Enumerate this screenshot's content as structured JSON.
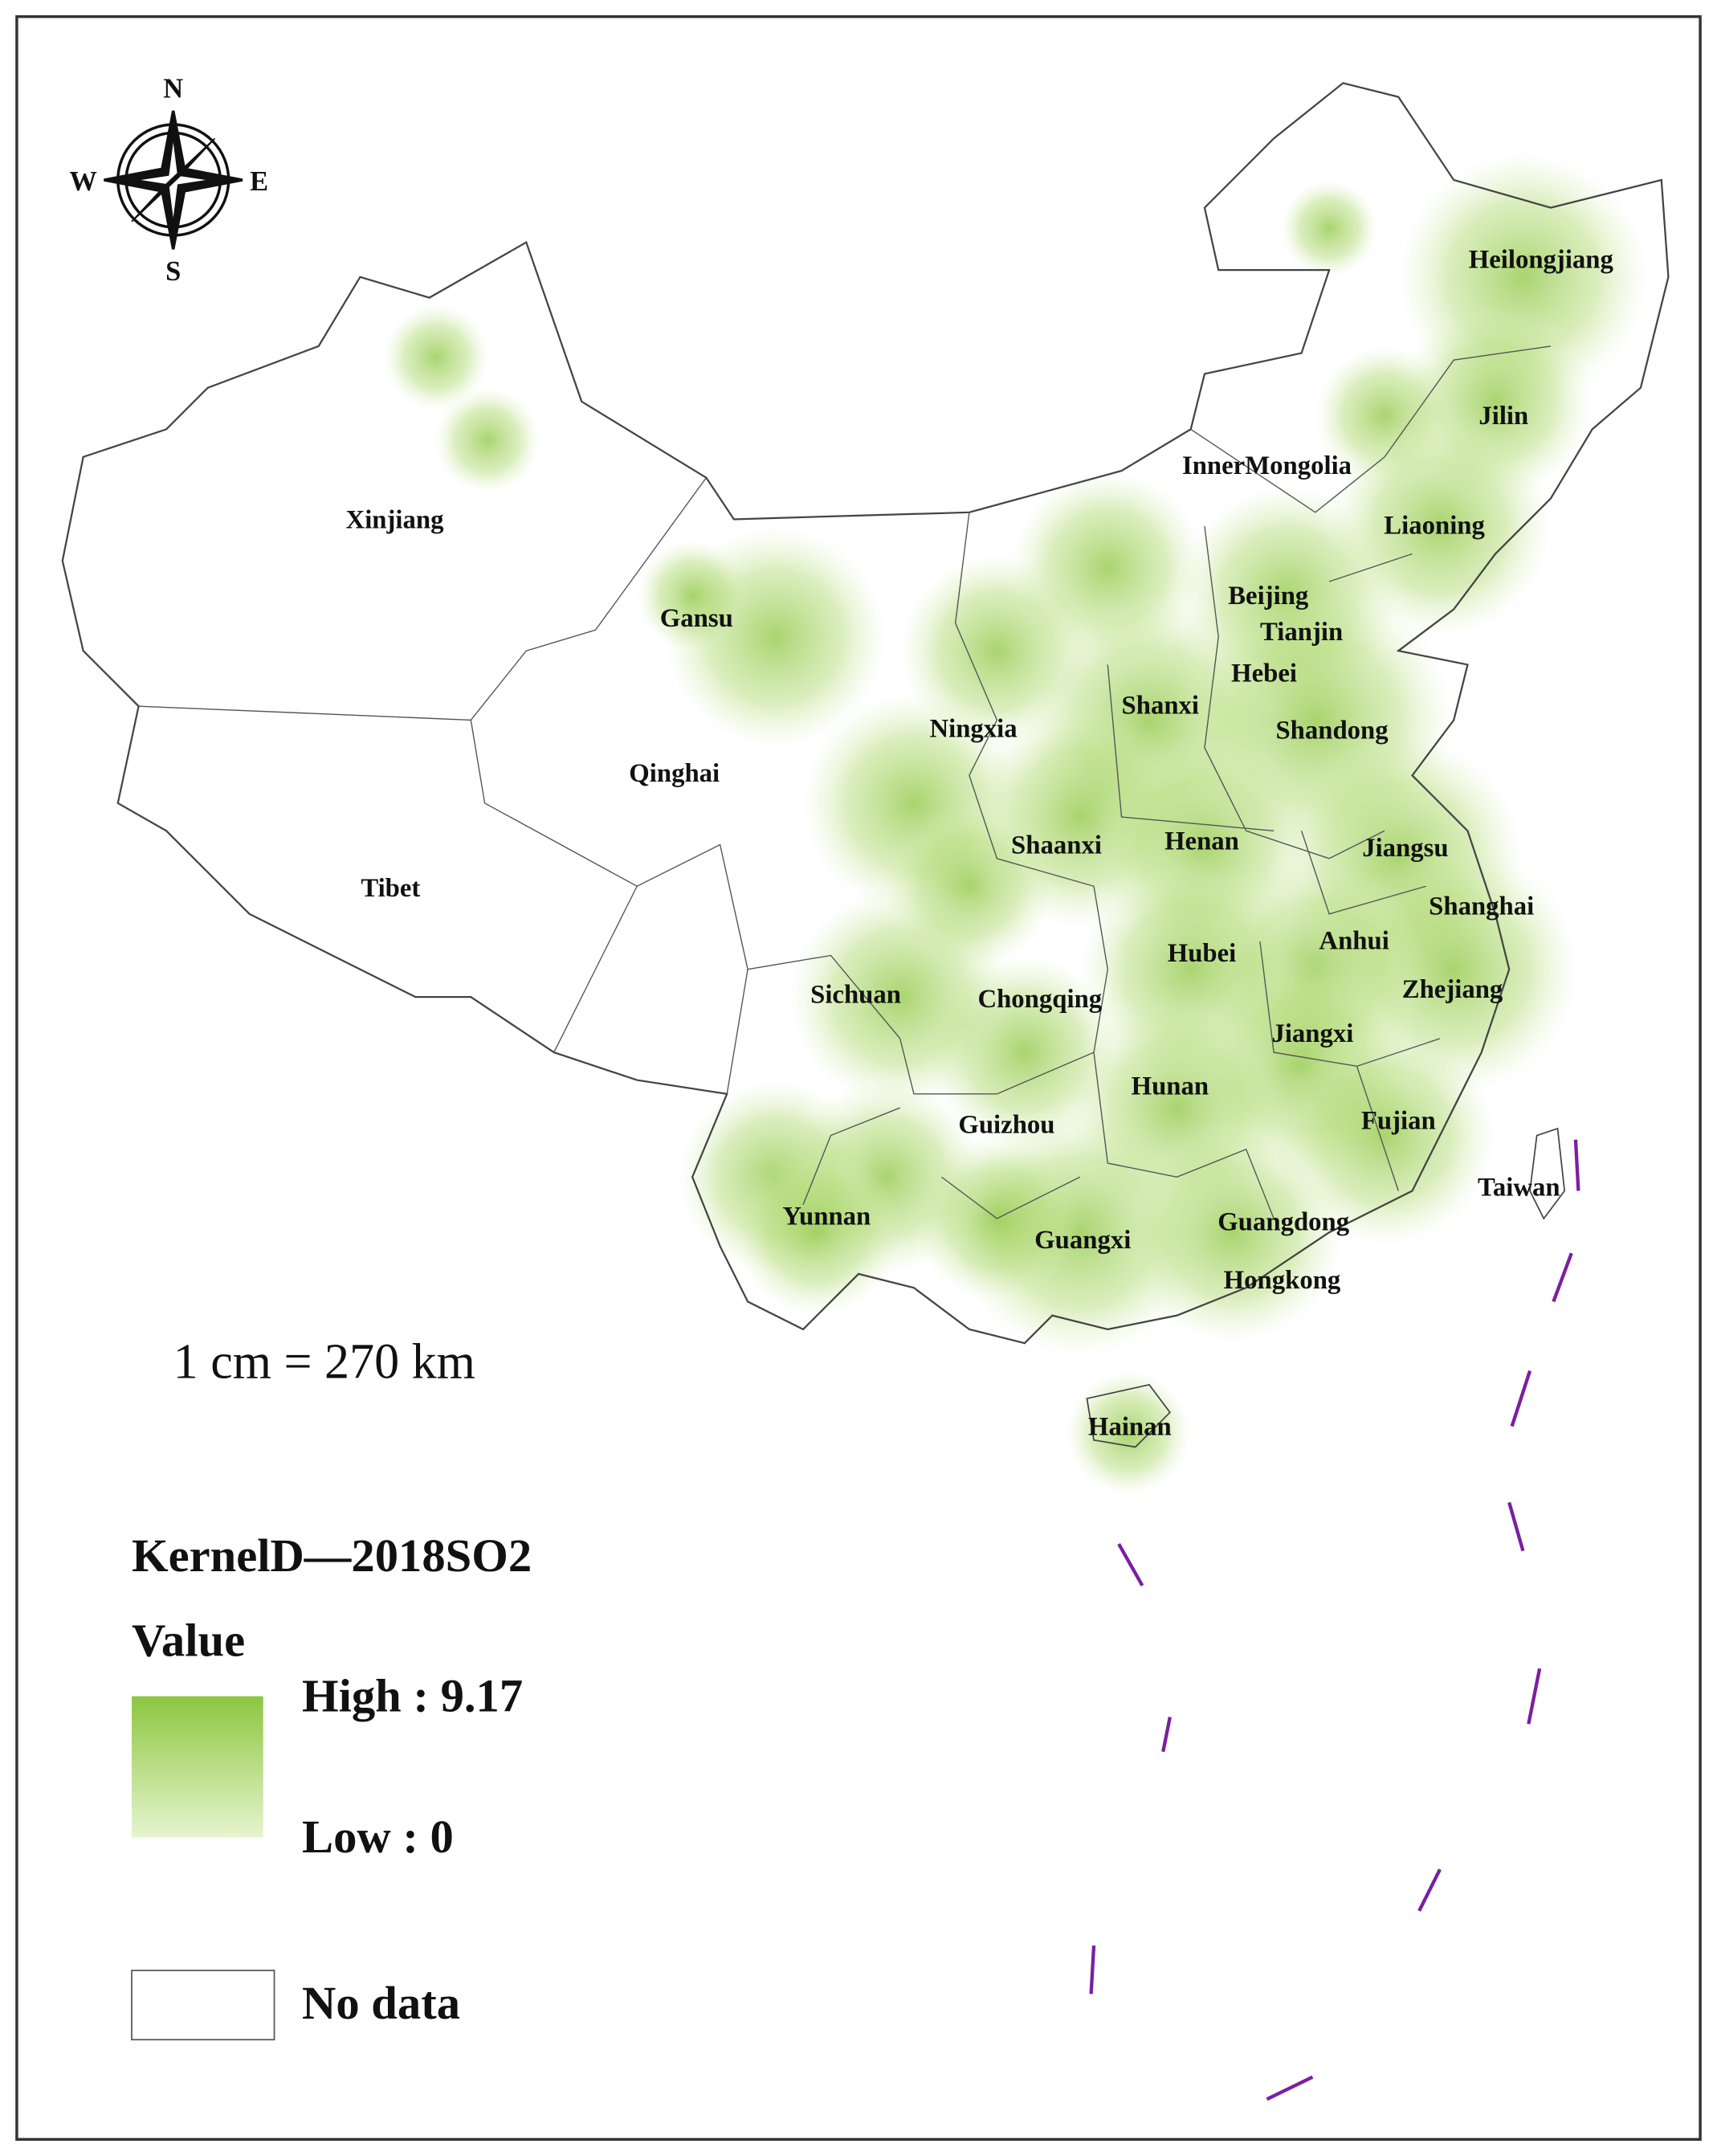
{
  "compass": {
    "n": "N",
    "s": "S",
    "e": "E",
    "w": "W"
  },
  "scale": "1 cm = 270 km",
  "legend": {
    "title": "KernelD—2018SO2",
    "subtitle": "Value",
    "high": "High : 9.17",
    "low": "Low : 0",
    "no_data": "No data"
  },
  "regions": [
    "Heilongjiang",
    "Jilin",
    "InnerMongolia",
    "Liaoning",
    "Xinjiang",
    "Gansu",
    "Beijing",
    "Tianjin",
    "Hebei",
    "Shanxi",
    "Shandong",
    "Ningxia",
    "Qinghai",
    "Shaanxi",
    "Henan",
    "Jiangsu",
    "Tibet",
    "Shanghai",
    "Anhui",
    "Hubei",
    "Sichuan",
    "Chongqing",
    "Zhejiang",
    "Jiangxi",
    "Hunan",
    "Fujian",
    "Guizhou",
    "Taiwan",
    "Yunnan",
    "Guangxi",
    "Guangdong",
    "Hongkong",
    "Hainan"
  ]
}
